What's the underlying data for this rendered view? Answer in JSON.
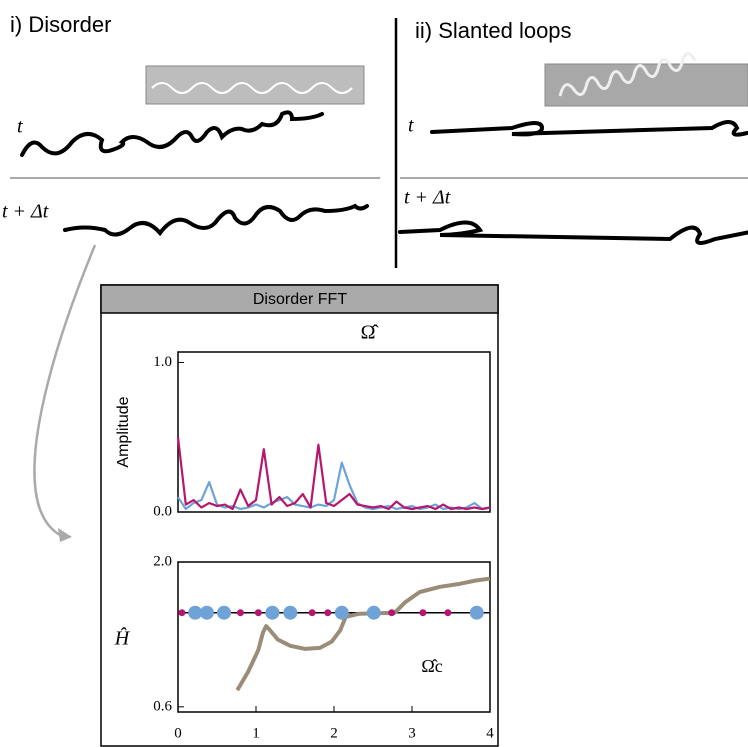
{
  "figure": {
    "panels": [
      {
        "label": "i) Disorder",
        "t": "t",
        "t_dt": "t + Δt"
      },
      {
        "label": "ii) Slanted loops",
        "t": "t",
        "t_dt": "t + Δt"
      }
    ]
  },
  "chart_data": [
    {
      "type": "line",
      "title": "Disorder FFT",
      "annotation": "Ω̂",
      "ylabel": "Amplitude",
      "xlim": [
        0,
        4
      ],
      "ylim": [
        0,
        1.07
      ],
      "yticks": [
        {
          "value": 0,
          "label": "0.0"
        },
        {
          "value": 1,
          "label": "1.0"
        }
      ],
      "x": [
        0,
        0.1,
        0.2,
        0.3,
        0.4,
        0.5,
        0.6,
        0.7,
        0.8,
        0.9,
        1.0,
        1.1,
        1.2,
        1.3,
        1.4,
        1.5,
        1.6,
        1.7,
        1.8,
        1.9,
        2.0,
        2.1,
        2.2,
        2.3,
        2.4,
        2.5,
        2.6,
        2.7,
        2.8,
        2.9,
        3.0,
        3.1,
        3.2,
        3.3,
        3.4,
        3.5,
        3.6,
        3.7,
        3.8,
        3.9,
        4.0
      ],
      "series": [
        {
          "color": "#6fa3d8",
          "values": [
            0.1,
            0.02,
            0.06,
            0.08,
            0.2,
            0.05,
            0.03,
            0.04,
            0.02,
            0.03,
            0.05,
            0.03,
            0.06,
            0.08,
            0.1,
            0.05,
            0.04,
            0.03,
            0.05,
            0.04,
            0.08,
            0.33,
            0.18,
            0.06,
            0.03,
            0.02,
            0.03,
            0.04,
            0.02,
            0.03,
            0.04,
            0.02,
            0.03,
            0.05,
            0.02,
            0.03,
            0.02,
            0.03,
            0.06,
            0.02,
            0.03
          ]
        },
        {
          "color": "#b5176e",
          "values": [
            0.5,
            0.05,
            0.08,
            0.03,
            0.06,
            0.04,
            0.05,
            0.02,
            0.15,
            0.04,
            0.08,
            0.42,
            0.05,
            0.1,
            0.04,
            0.06,
            0.12,
            0.03,
            0.45,
            0.06,
            0.04,
            0.08,
            0.12,
            0.05,
            0.04,
            0.03,
            0.04,
            0.02,
            0.07,
            0.03,
            0.02,
            0.03,
            0.04,
            0.02,
            0.05,
            0.02,
            0.03,
            0.02,
            0.03,
            0.02,
            0.03
          ]
        }
      ]
    },
    {
      "type": "scatter",
      "annotation": "Ω̂c",
      "ylabel": "Ĥ",
      "xlim": [
        0,
        4
      ],
      "ylim": [
        0.55,
        2.0
      ],
      "hline": 1.51,
      "xticks": [
        0,
        1,
        2,
        3,
        4
      ],
      "yticks": [
        {
          "value": 0.6,
          "label": "0.6"
        },
        {
          "value": 2,
          "label": "2.0"
        }
      ],
      "series": [
        {
          "color": "#9b8c78",
          "style": "line",
          "x": [
            0.76,
            0.9,
            1.03,
            1.09,
            1.13,
            1.18,
            1.28,
            1.44,
            1.63,
            1.82,
            1.97,
            2.08,
            2.15,
            2.33,
            2.78,
            2.91,
            3.1,
            3.36,
            3.62,
            3.81,
            4.0
          ],
          "values": [
            0.76,
            0.94,
            1.15,
            1.32,
            1.38,
            1.34,
            1.25,
            1.19,
            1.16,
            1.17,
            1.23,
            1.34,
            1.47,
            1.5,
            1.51,
            1.61,
            1.71,
            1.76,
            1.79,
            1.82,
            1.84
          ]
        },
        {
          "color": "#6fa3d8",
          "style": "marker",
          "size": 7,
          "x": [
            0.22,
            0.37,
            0.59,
            1.21,
            1.44,
            2.1,
            2.51,
            3.83
          ],
          "values": [
            1.51,
            1.51,
            1.51,
            1.51,
            1.51,
            1.51,
            1.51,
            1.51
          ]
        },
        {
          "color": "#b5176e",
          "style": "marker",
          "size": 3.5,
          "x": [
            0.05,
            0.8,
            1.03,
            1.72,
            1.92,
            2.74,
            3.14,
            3.46
          ],
          "values": [
            1.51,
            1.51,
            1.51,
            1.51,
            1.51,
            1.51,
            1.51,
            1.51
          ]
        }
      ]
    }
  ]
}
